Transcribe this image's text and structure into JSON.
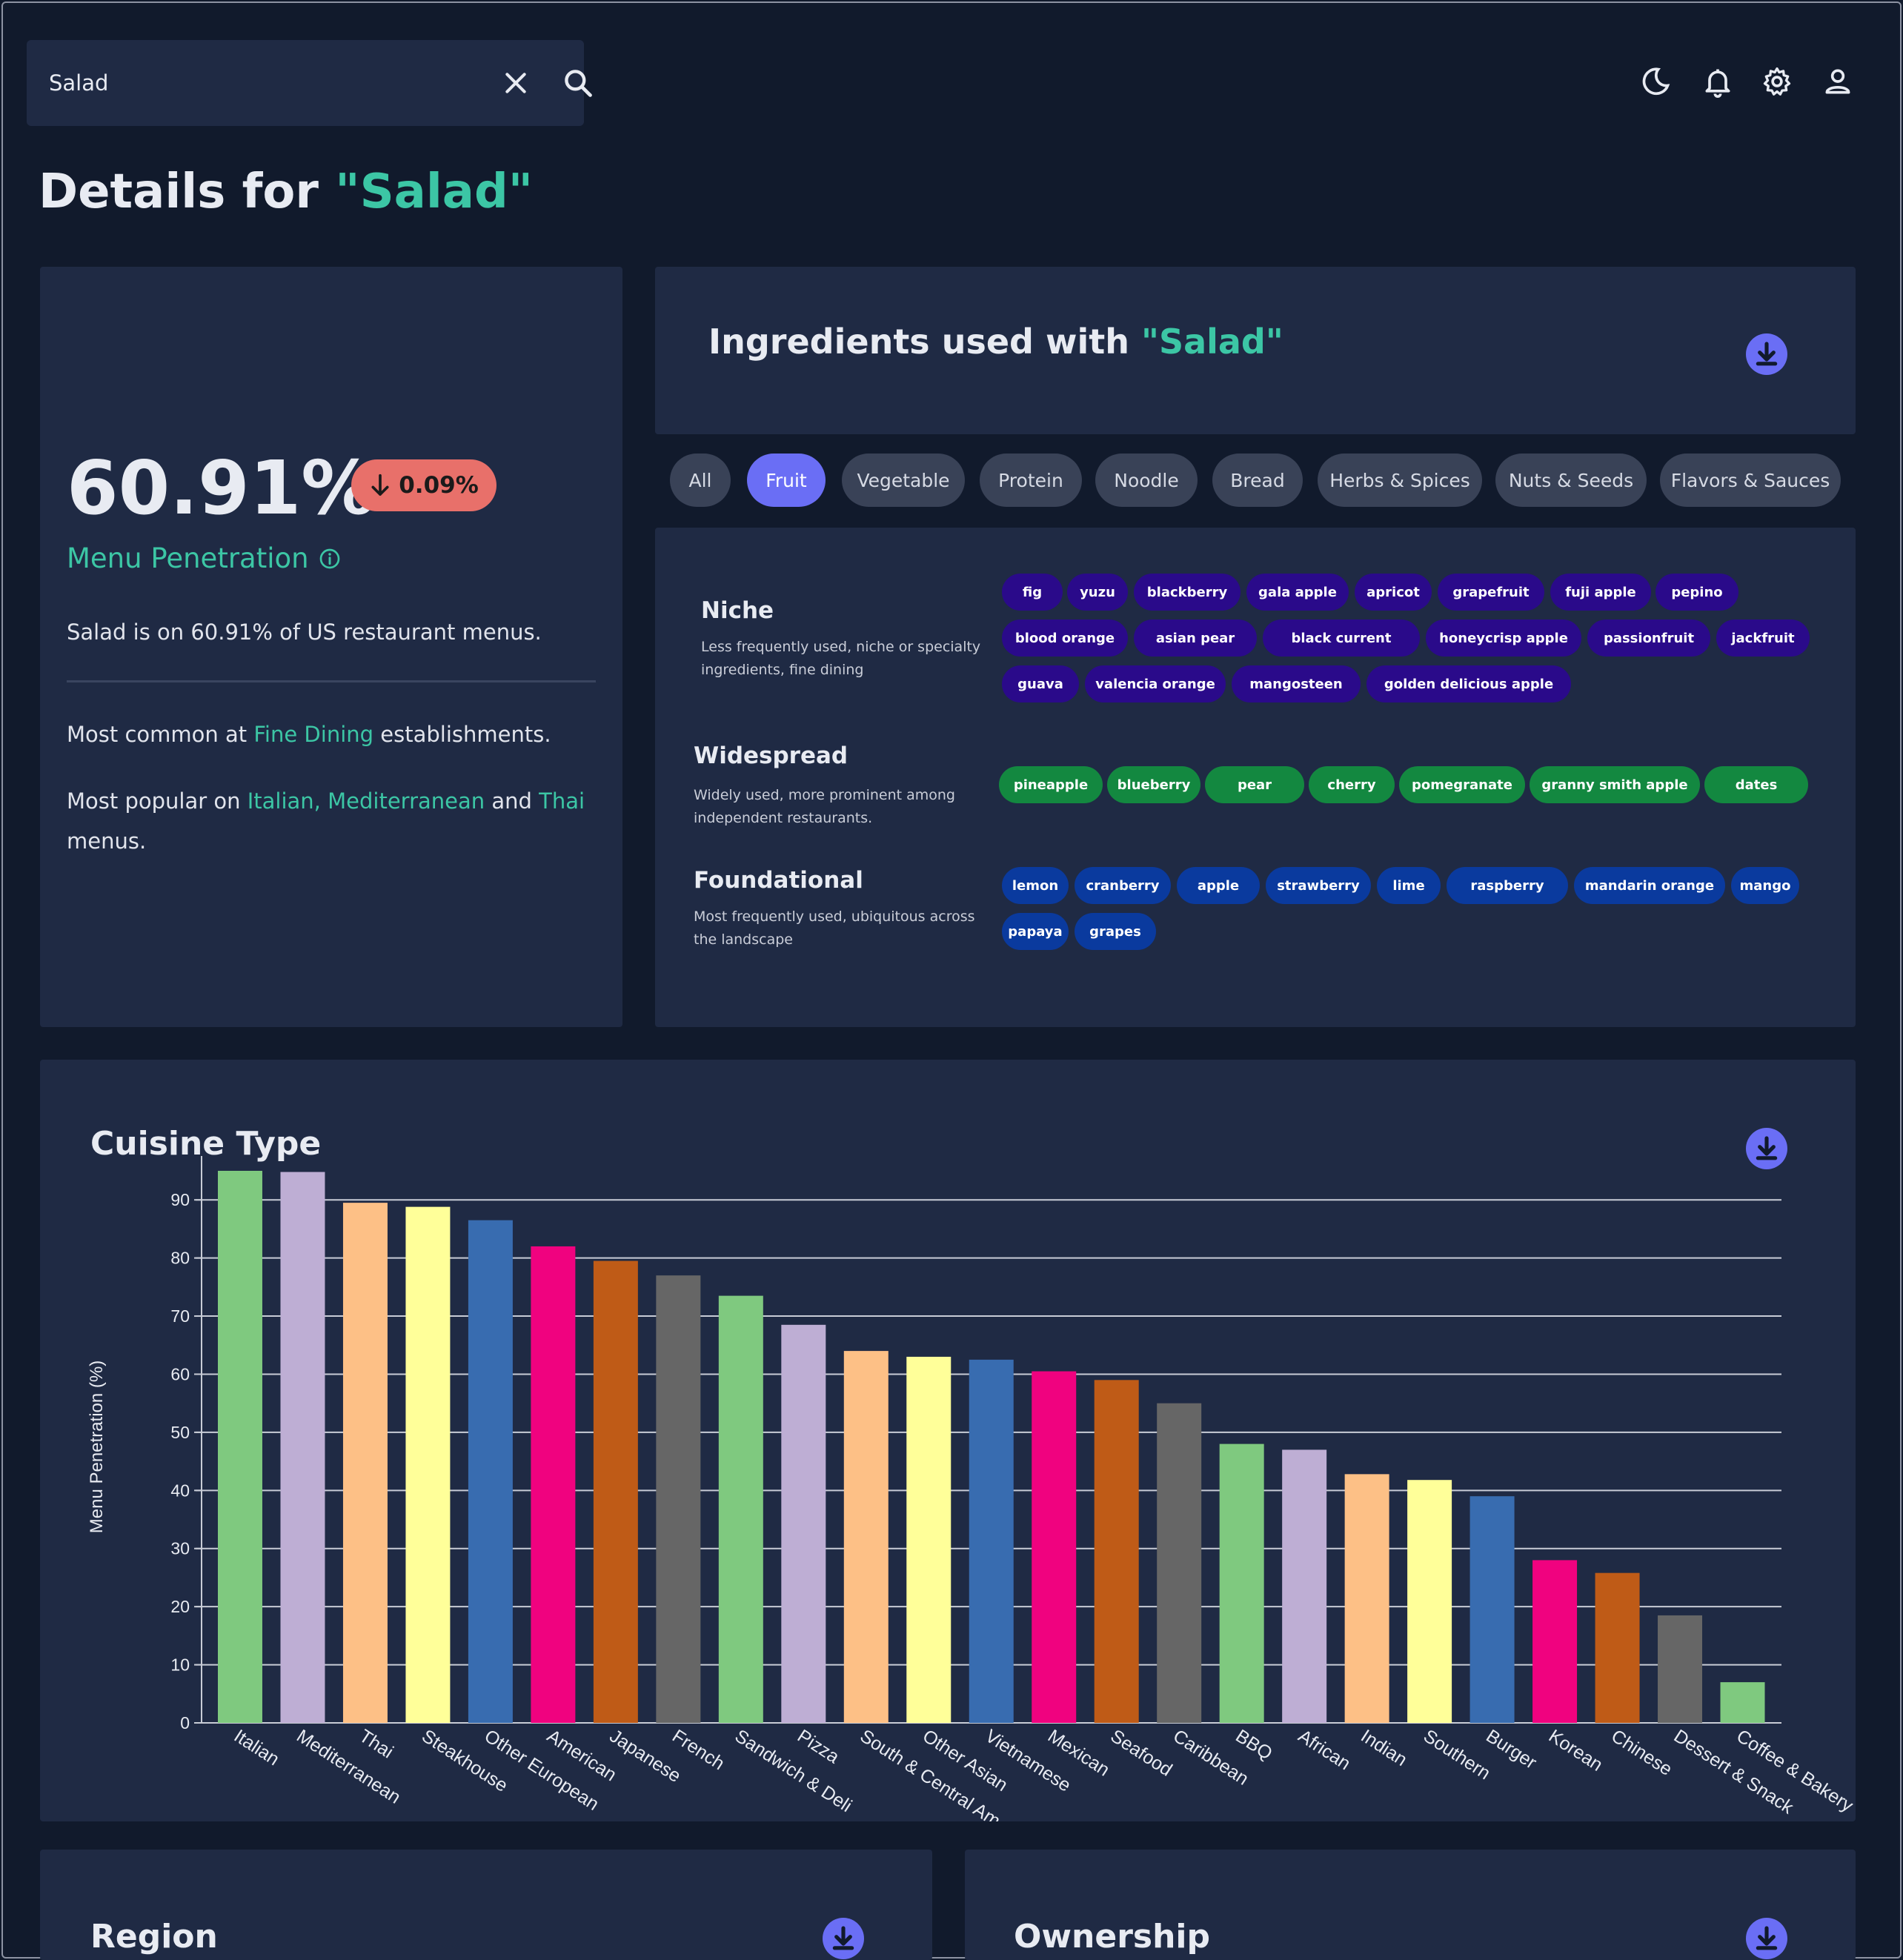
{
  "search": {
    "value": "Salad"
  },
  "title": {
    "prefix": "Details for ",
    "term": "\"Salad\""
  },
  "kpi": {
    "value": "60.91%",
    "delta": "0.09%",
    "delta_direction": "down",
    "label": "Menu Penetration",
    "description": "Salad is on 60.91% of US restaurant menus.",
    "common_prefix": "Most common at ",
    "common_link": "Fine Dining",
    "common_suffix": " establishments.",
    "popular_prefix": "Most popular on ",
    "popular_link1": "Italian, Mediterranean",
    "popular_and": " and ",
    "popular_link2": "Thai",
    "popular_suffix": "menus."
  },
  "ingredients": {
    "title_prefix": "Ingredients used with ",
    "title_term": "\"Salad\"",
    "filters": [
      "All",
      "Fruit",
      "Vegetable",
      "Protein",
      "Noodle",
      "Bread",
      "Herbs & Spices",
      "Nuts & Seeds",
      "Flavors & Sauces"
    ],
    "active_filter": "Fruit",
    "tiers": [
      {
        "name": "Niche",
        "description": "Less frequently used, niche or specialty ingredients, fine dining",
        "color": "#2a0a8a",
        "items": [
          "fig",
          "yuzu",
          "blackberry",
          "gala apple",
          "apricot",
          "grapefruit",
          "fuji apple",
          "pepino",
          "blood orange",
          "asian pear",
          "black current",
          "honeycrisp apple",
          "passionfruit",
          "jackfruit",
          "guava",
          "valencia orange",
          "mangosteen",
          "golden delicious apple"
        ]
      },
      {
        "name": "Widespread",
        "description": "Widely used, more prominent among independent restaurants.",
        "color": "#138840",
        "items": [
          "pineapple",
          "blueberry",
          "pear",
          "cherry",
          "pomegranate",
          "granny smith apple",
          "dates"
        ]
      },
      {
        "name": "Foundational",
        "description": "Most frequently used, ubiquitous across the landscape",
        "color": "#0a3a9e",
        "items": [
          "lemon",
          "cranberry",
          "apple",
          "strawberry",
          "lime",
          "raspberry",
          "mandarin orange",
          "mango",
          "papaya",
          "grapes"
        ]
      }
    ]
  },
  "cuisine": {
    "title": "Cuisine Type"
  },
  "region": {
    "title": "Region"
  },
  "ownership": {
    "title": "Ownership"
  },
  "icons": [
    "close-icon",
    "search-icon",
    "moon-icon",
    "bell-icon",
    "gear-icon",
    "user-icon",
    "info-icon",
    "download-icon",
    "arrow-down-icon"
  ],
  "colors": {
    "accent": "#3cc6a5",
    "primary": "#6a6ef5",
    "negative": "#e8706a"
  },
  "chart_data": {
    "type": "bar",
    "title": "Cuisine Type",
    "xlabel": "",
    "ylabel": "Menu Penetration (%)",
    "ylim": [
      0,
      95
    ],
    "yticks": [
      0,
      10,
      20,
      30,
      40,
      50,
      60,
      70,
      80,
      90
    ],
    "grid": true,
    "categories": [
      "Italian",
      "Mediterranean",
      "Thai",
      "Steakhouse",
      "Other European",
      "American",
      "Japanese",
      "French",
      "Sandwich & Deli",
      "Pizza",
      "South & Central Am",
      "Other Asian",
      "Vietnamese",
      "Mexican",
      "Seafood",
      "Caribbean",
      "BBQ",
      "African",
      "Indian",
      "Southern",
      "Burger",
      "Korean",
      "Chinese",
      "Dessert & Snack",
      "Coffee & Bakery"
    ],
    "values": [
      95,
      94.8,
      89.5,
      88.8,
      86.5,
      82,
      79.5,
      77,
      73.5,
      68.5,
      64,
      63,
      62.5,
      60.5,
      59,
      55,
      48,
      47,
      42.8,
      41.8,
      39,
      28,
      25.8,
      18.5,
      7
    ],
    "colors": [
      "#7fc97f",
      "#beaed4",
      "#fdc086",
      "#ffff99",
      "#386cb0",
      "#f0027f",
      "#bf5b17",
      "#666666",
      "#7fc97f",
      "#beaed4",
      "#fdc086",
      "#ffff99",
      "#386cb0",
      "#f0027f",
      "#bf5b17",
      "#666666",
      "#7fc97f",
      "#beaed4",
      "#fdc086",
      "#ffff99",
      "#386cb0",
      "#f0027f",
      "#bf5b17",
      "#666666",
      "#7fc97f"
    ]
  }
}
